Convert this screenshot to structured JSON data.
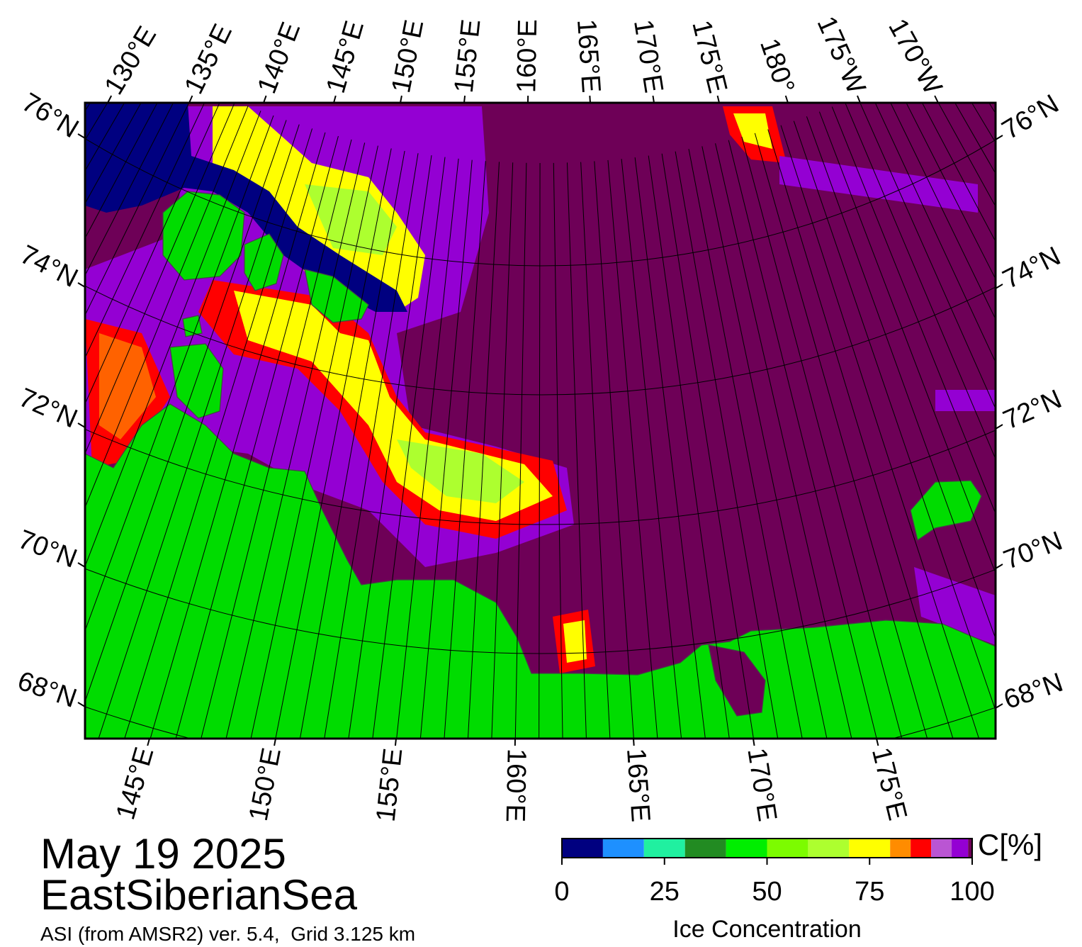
{
  "title": {
    "date": "May 19 2025",
    "region": "EastSiberianSea",
    "source": "ASI (from AMSR2) ver. 5.4,  Grid 3.125 km"
  },
  "map": {
    "lon_labels_top": [
      "130°E",
      "135°E",
      "140°E",
      "145°E",
      "150°E",
      "155°E",
      "160°E",
      "165°E",
      "170°E",
      "175°E",
      "180°",
      "175°W",
      "170°W"
    ],
    "lon_labels_bottom": [
      "145°E",
      "150°E",
      "155°E",
      "160°E",
      "165°E",
      "170°E",
      "175°E"
    ],
    "lat_labels_left": [
      "76°N",
      "74°N",
      "72°N",
      "70°N",
      "68°N"
    ],
    "lat_labels_right": [
      "76°N",
      "74°N",
      "72°N",
      "70°N",
      "68°N"
    ]
  },
  "colorbar": {
    "bins": [
      0,
      10,
      20,
      30,
      40,
      50,
      60,
      70,
      80,
      85,
      90,
      95,
      99,
      100
    ],
    "colors": [
      "#000080",
      "#1e90ff",
      "#20f0a0",
      "#228b22",
      "#00ee00",
      "#7cfc00",
      "#adff2f",
      "#ffff00",
      "#ff8c00",
      "#ff0000",
      "#ba55d3",
      "#9400d3",
      "#6e0057"
    ],
    "ticks": [
      0,
      25,
      50,
      75,
      100
    ],
    "unit": "C[%]",
    "label": "Ice Concentration"
  }
}
